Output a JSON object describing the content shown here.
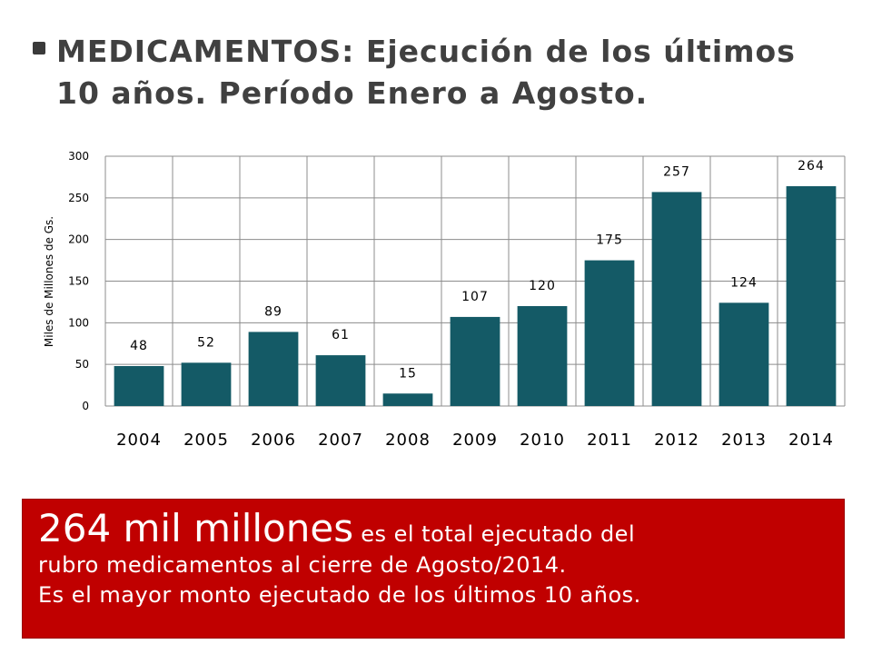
{
  "slide": {
    "title_line1": "MEDICAMENTOS: Ejecución de los últimos",
    "title_line2": "10 años. Período Enero a Agosto."
  },
  "callout": {
    "highlight": "264 mil millones",
    "rest_line1": " es el total ejecutado del",
    "line2": "rubro medicamentos al cierre de Agosto/2014.",
    "line3": "Es el mayor monto ejecutado de los últimos 10 años."
  },
  "colors": {
    "bar": "#145a66",
    "callout_bg": "#c00000",
    "title": "#404040"
  },
  "chart_data": {
    "type": "bar",
    "categories": [
      "2004",
      "2005",
      "2006",
      "2007",
      "2008",
      "2009",
      "2010",
      "2011",
      "2012",
      "2013",
      "2014"
    ],
    "values": [
      48,
      52,
      89,
      61,
      15,
      107,
      120,
      175,
      257,
      124,
      264
    ],
    "data_labels": [
      "48",
      "52",
      "89",
      "61",
      "15",
      "107",
      "120",
      "175",
      "257",
      "124",
      "264"
    ],
    "ylabel": "Miles de Millones de Gs.",
    "xlabel": "",
    "ylim": [
      0,
      300
    ],
    "yticks": [
      0,
      50,
      100,
      150,
      200,
      250,
      300
    ],
    "grid": true,
    "legend": "none"
  }
}
